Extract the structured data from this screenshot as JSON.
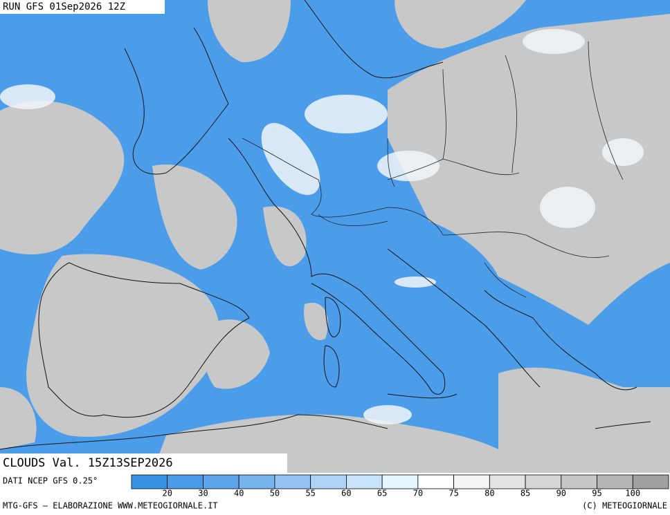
{
  "header": {
    "run": "RUN GFS 01Sep2026 12Z"
  },
  "title": "CLOUDS Val. 15Z13SEP2026",
  "legend": {
    "source": "DATI NCEP GFS 0.25°",
    "labels": [
      20,
      30,
      40,
      50,
      55,
      60,
      65,
      70,
      75,
      80,
      85,
      90,
      95,
      100
    ],
    "colors": [
      "#3a92e6",
      "#4a9be8",
      "#5ea6ec",
      "#78b4ee",
      "#92c3f2",
      "#aed3f6",
      "#c8e2f9",
      "#e2f6fc",
      "#ffffff",
      "#f4f4f4",
      "#e4e4e4",
      "#d4d4d4",
      "#c6c6c6",
      "#b6b6b6",
      "#a0a0a0"
    ]
  },
  "footer": {
    "left": "MTG-GFS — ELABORAZIONE WWW.METEOGIORNALE.IT",
    "right": "(C) METEOGIORNALE"
  }
}
